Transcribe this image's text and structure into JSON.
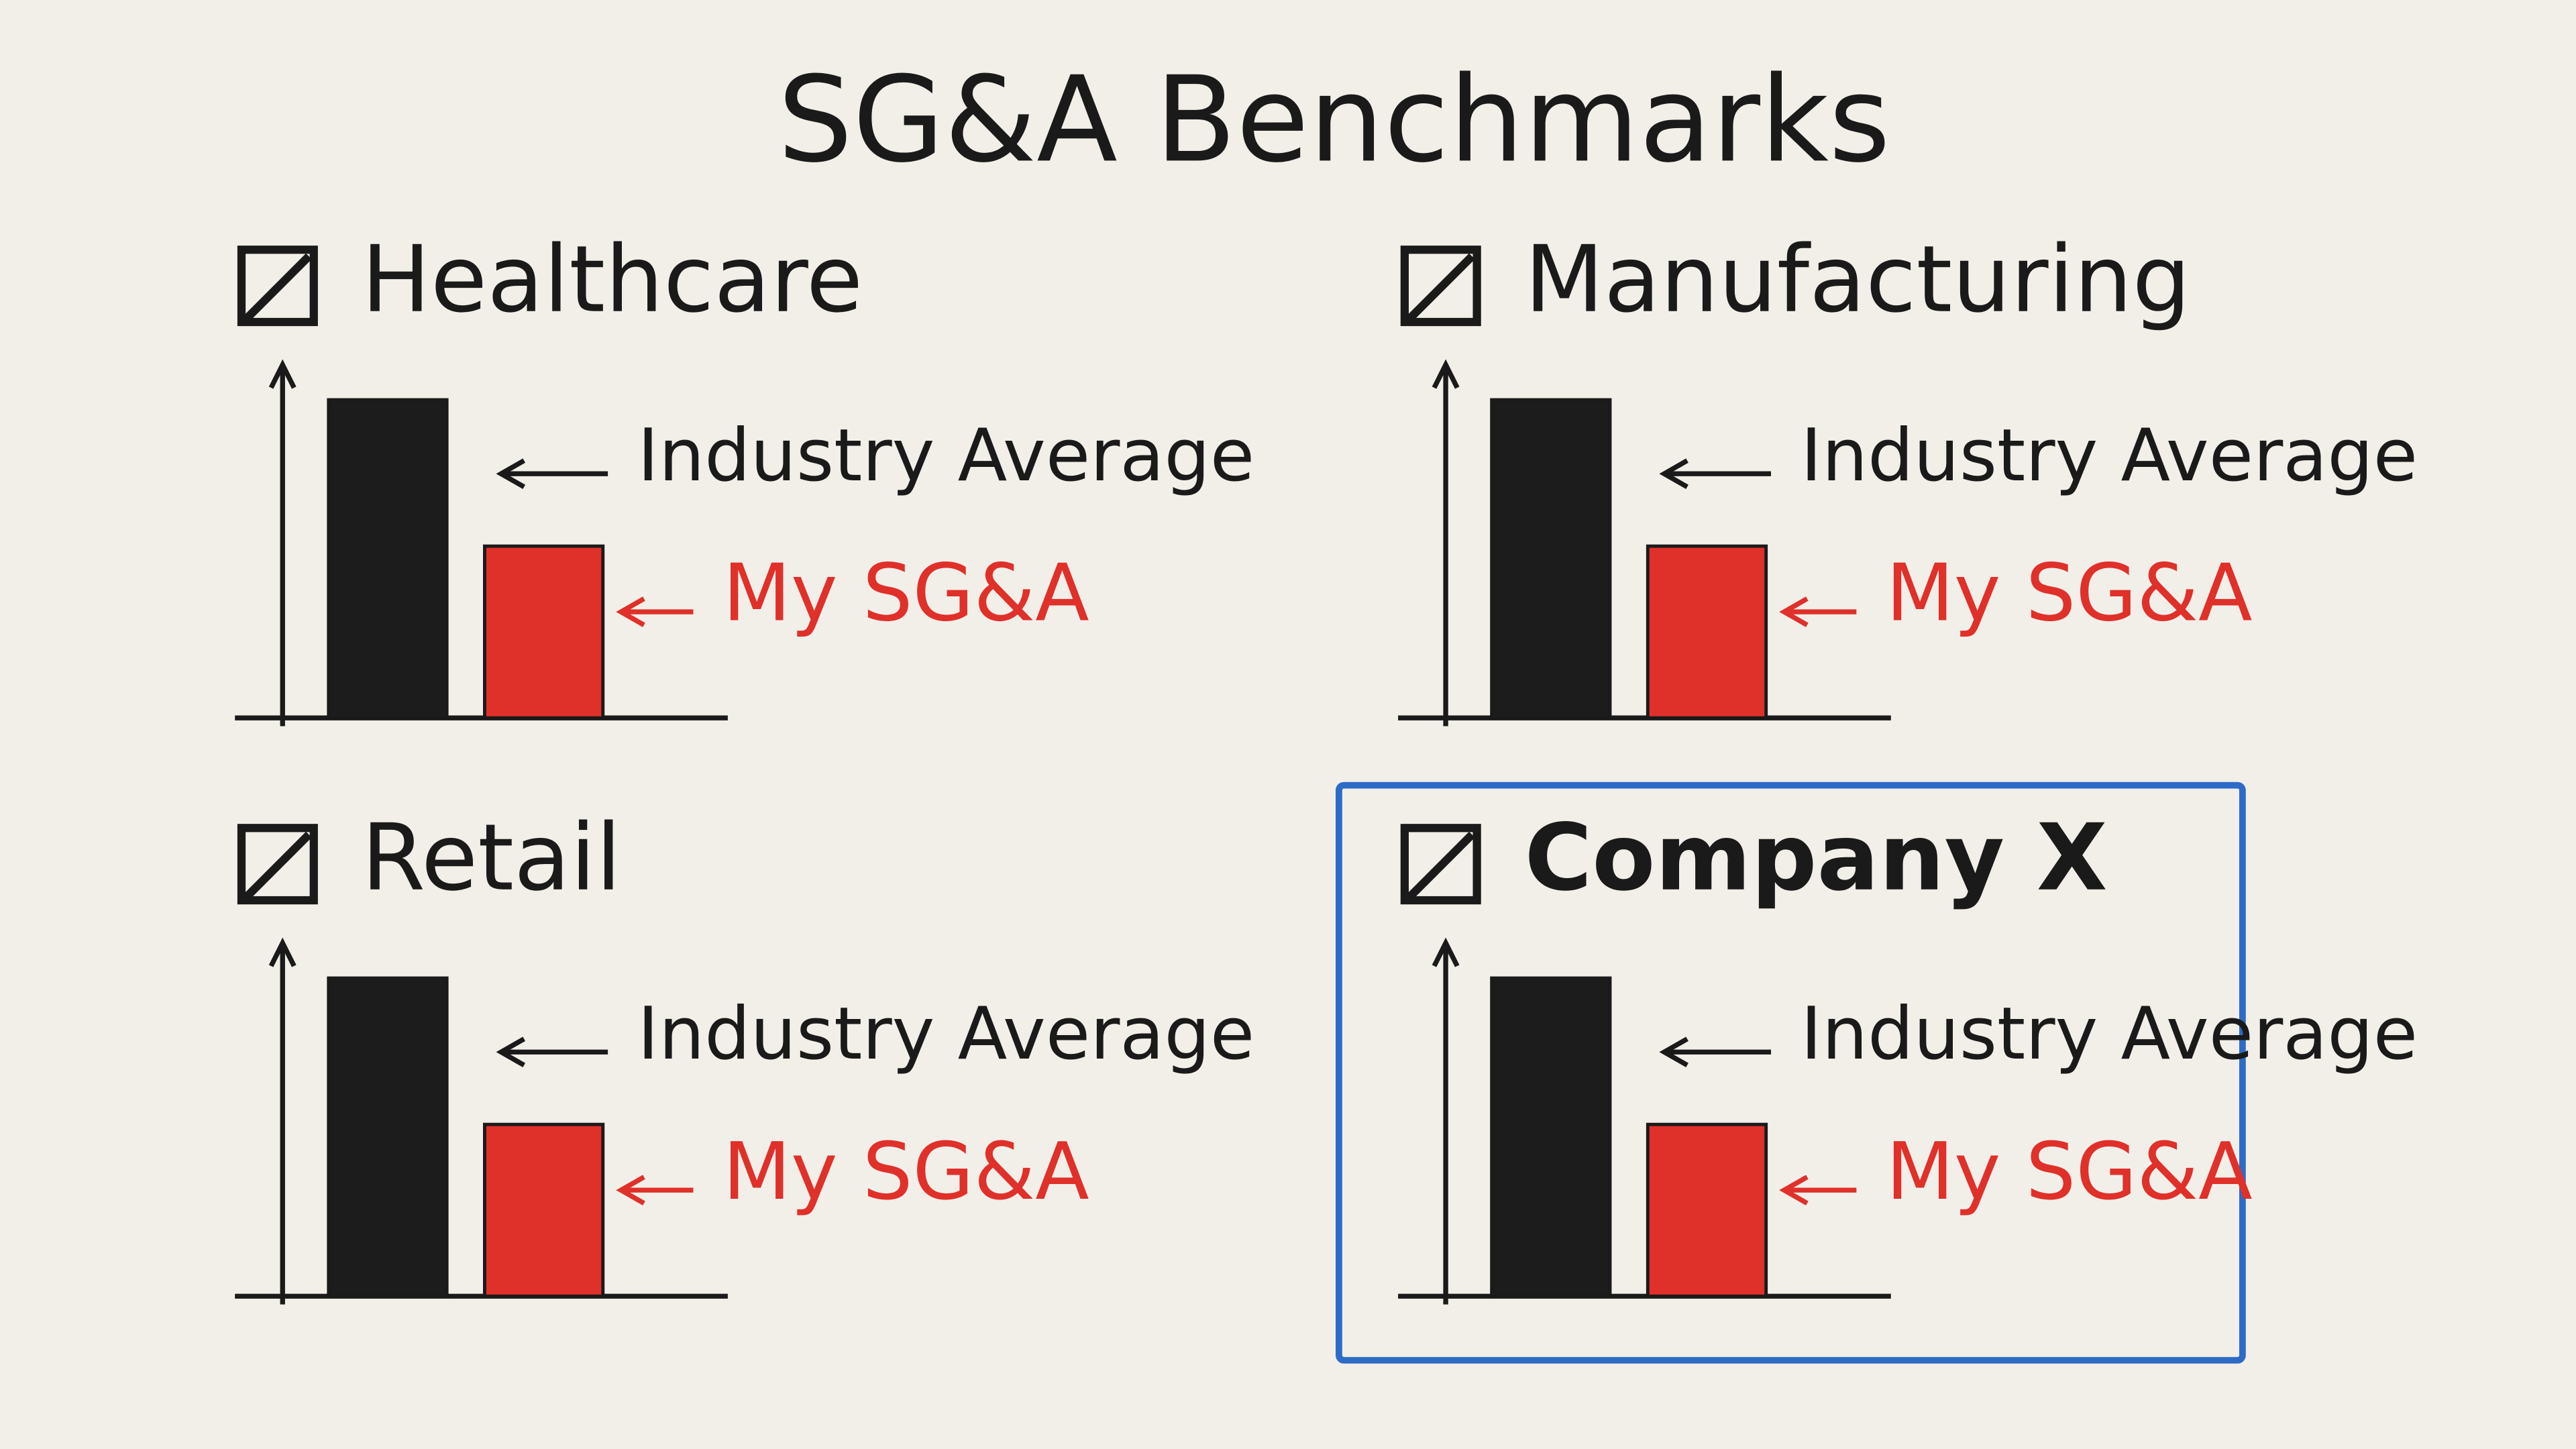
{
  "title": "SG&A Benchmarks",
  "chart_data": [
    {
      "type": "bar",
      "title": "Healthcare",
      "categories": [
        "Industry Average",
        "My SG&A"
      ],
      "values": [
        100,
        54
      ],
      "colors": [
        "#1c1c1c",
        "#e0302a"
      ],
      "ylim": [
        0,
        110
      ],
      "highlighted": false
    },
    {
      "type": "bar",
      "title": "Manufacturing",
      "categories": [
        "Industry Average",
        "My SG&A"
      ],
      "values": [
        100,
        54
      ],
      "colors": [
        "#1c1c1c",
        "#e0302a"
      ],
      "ylim": [
        0,
        110
      ],
      "highlighted": false
    },
    {
      "type": "bar",
      "title": "Retail",
      "categories": [
        "Industry Average",
        "My SG&A"
      ],
      "values": [
        100,
        54
      ],
      "colors": [
        "#1c1c1c",
        "#e0302a"
      ],
      "ylim": [
        0,
        110
      ],
      "highlighted": false
    },
    {
      "type": "bar",
      "title": "Company X",
      "categories": [
        "Industry Average",
        "My SG&A"
      ],
      "values": [
        100,
        54
      ],
      "colors": [
        "#1c1c1c",
        "#e0302a"
      ],
      "ylim": [
        0,
        110
      ],
      "highlighted": true
    }
  ]
}
